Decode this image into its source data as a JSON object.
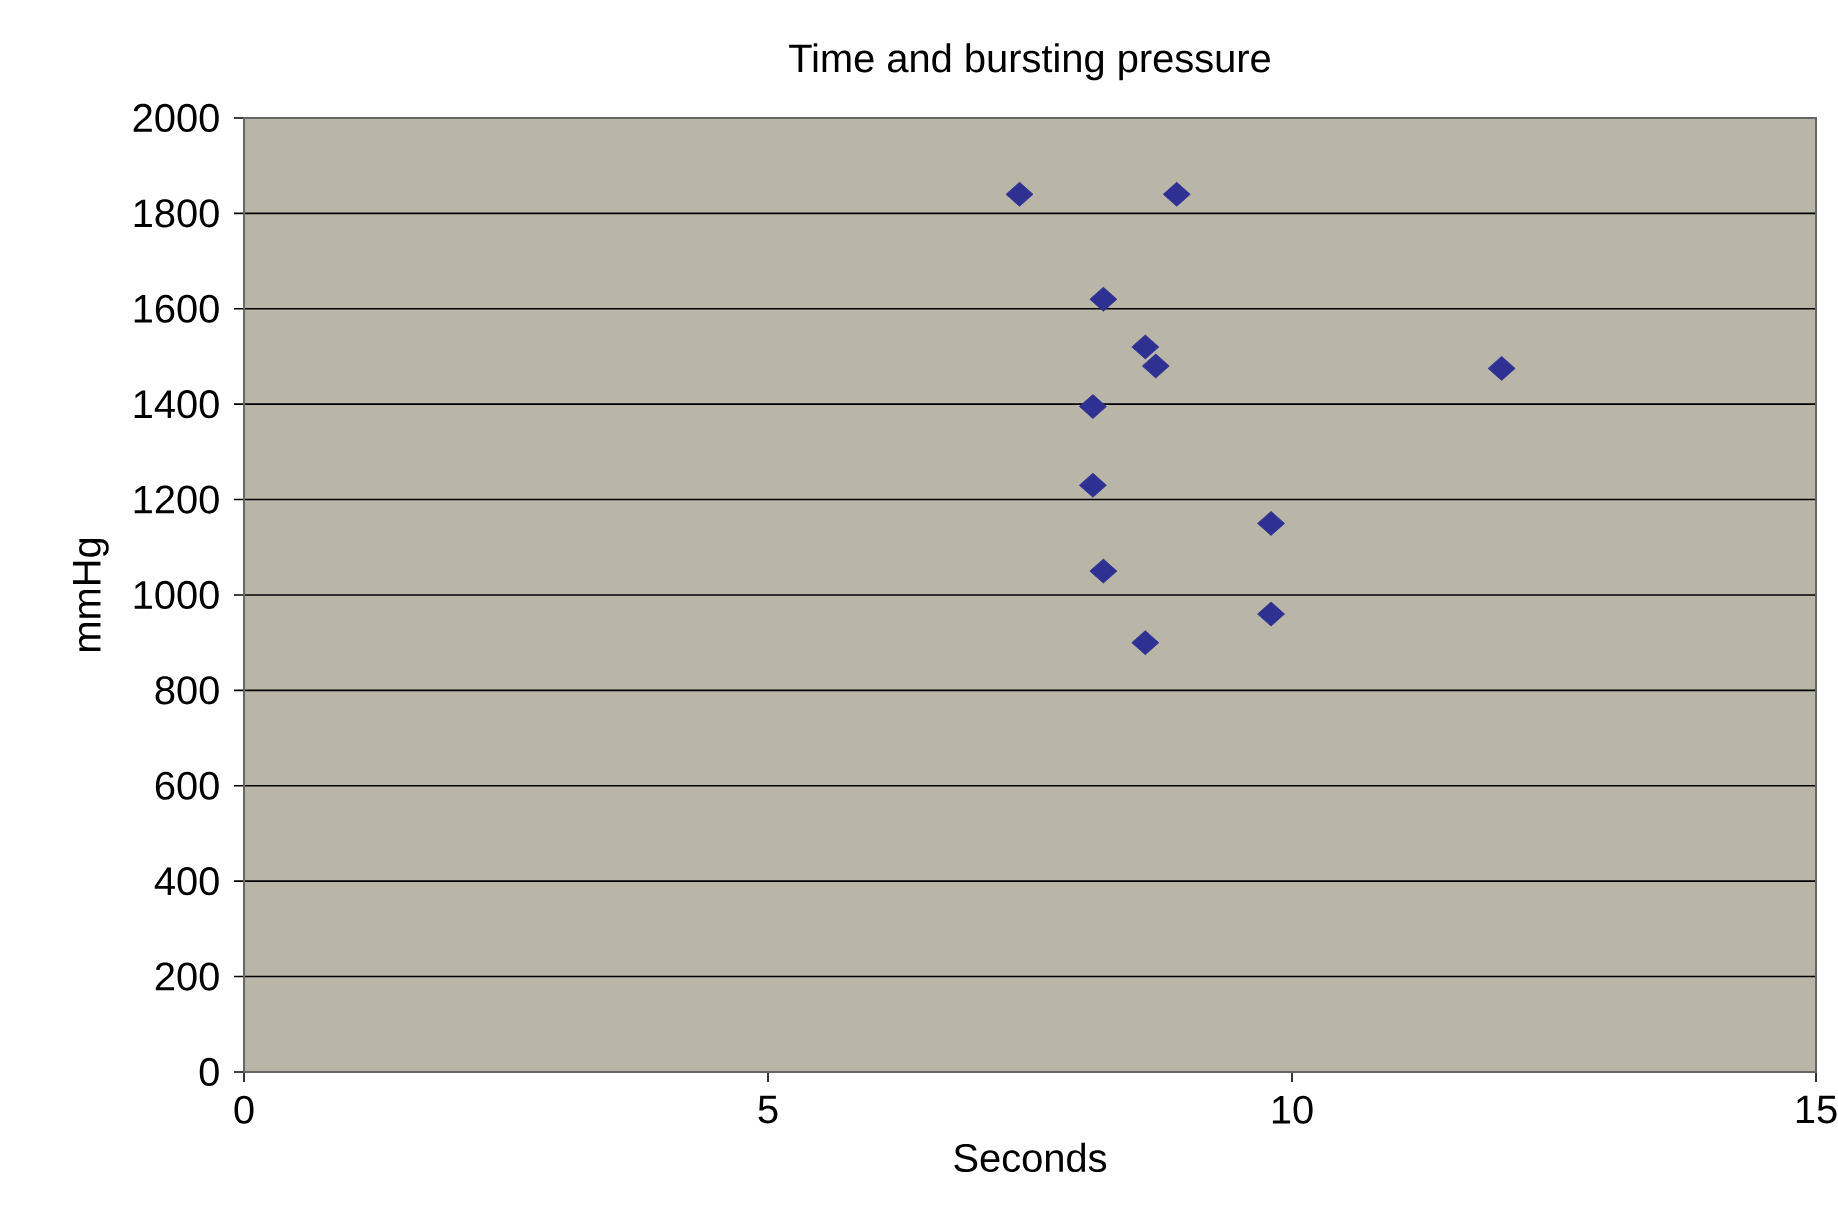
{
  "chart_data": {
    "type": "scatter",
    "title": "Time and bursting pressure",
    "xlabel": "Seconds",
    "ylabel": "mmHg",
    "series": [
      {
        "color": "#2e3192",
        "x": [
          7.4,
          8.9,
          8.2,
          8.6,
          8.7,
          12.0,
          8.1,
          8.1,
          9.8,
          8.2,
          9.8,
          8.6
        ],
        "values": [
          1840,
          1840,
          1620,
          1520,
          1480,
          1475,
          1395,
          1230,
          1150,
          1050,
          960,
          900
        ]
      }
    ],
    "xlim": [
      0,
      15
    ],
    "xticks": [
      0,
      5,
      10,
      15
    ],
    "ylim": [
      0,
      2000
    ],
    "yticks": [
      0,
      200,
      400,
      600,
      800,
      1000,
      1200,
      1400,
      1600,
      1800,
      2000
    ],
    "grid": "y",
    "marker": "diamond"
  }
}
